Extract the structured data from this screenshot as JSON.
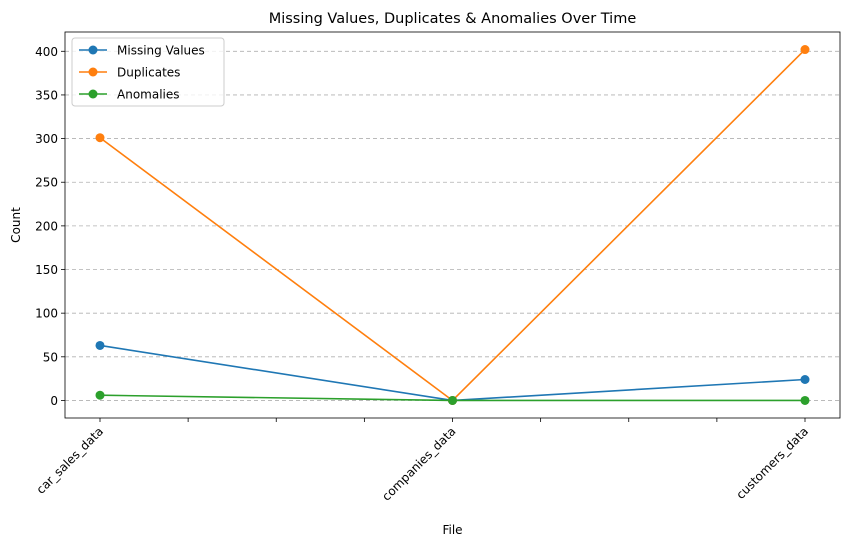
{
  "chart_data": {
    "type": "line",
    "title": "Missing Values, Duplicates & Anomalies Over Time",
    "xlabel": "File",
    "ylabel": "Count",
    "categories": [
      "car_sales_data",
      "companies_data",
      "customers_data"
    ],
    "series": [
      {
        "name": "Missing Values",
        "color": "#1f77b4",
        "values": [
          63,
          0,
          24
        ]
      },
      {
        "name": "Duplicates",
        "color": "#ff7f0e",
        "values": [
          301,
          0,
          402
        ]
      },
      {
        "name": "Anomalies",
        "color": "#2ca02c",
        "values": [
          6,
          0,
          0
        ]
      }
    ],
    "ylim": [
      -20.1,
      422.1
    ],
    "yticks": [
      0,
      50,
      100,
      150,
      200,
      250,
      300,
      350,
      400
    ],
    "grid": "y-dashed",
    "legend": "top-left",
    "x_rotation": 45
  }
}
